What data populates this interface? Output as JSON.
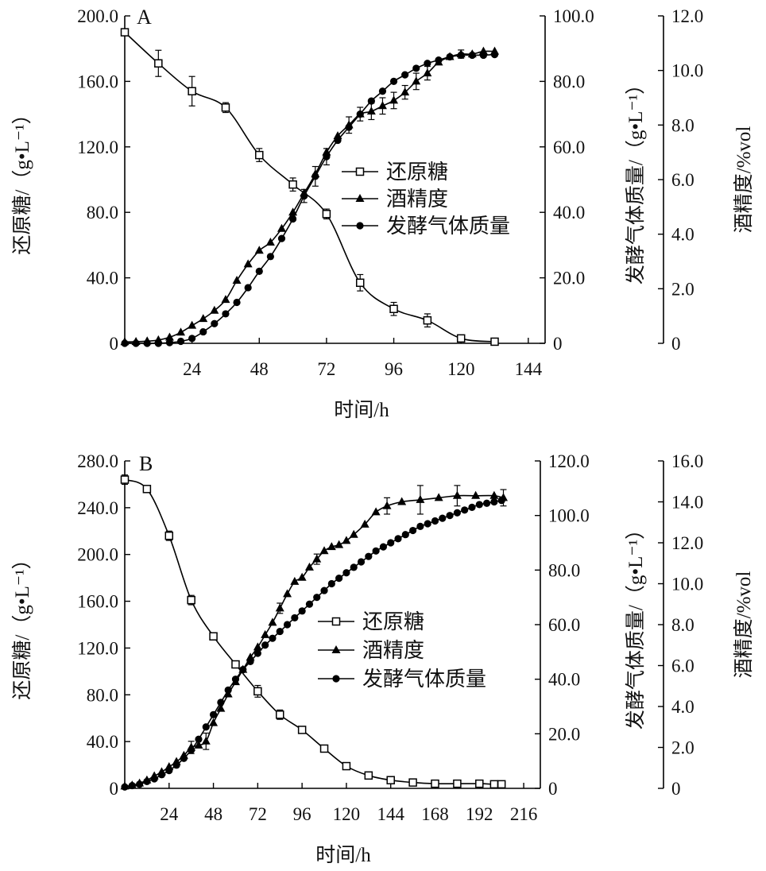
{
  "chart_data": [
    {
      "type": "line",
      "panel_label": "A",
      "xlabel": "时间/h",
      "x_ticks": [
        "24",
        "48",
        "72",
        "96",
        "120",
        "144"
      ],
      "xlim": [
        0,
        150
      ],
      "axes": {
        "left": {
          "label": "还原糖/（g•L⁻¹）",
          "range": [
            0,
            200
          ],
          "ticks": [
            "0",
            "40.0",
            "80.0",
            "120.0",
            "160.0",
            "200.0"
          ]
        },
        "right1": {
          "label": "发酵气体质量/（g•L⁻¹）",
          "range": [
            0,
            100
          ],
          "ticks": [
            "0",
            "20.0",
            "40.0",
            "60.0",
            "80.0",
            "100.0"
          ]
        },
        "right2": {
          "label": "酒精度/%vol",
          "range": [
            0,
            12
          ],
          "ticks": [
            "0",
            "2.0",
            "4.0",
            "6.0",
            "8.0",
            "10.0",
            "12.0"
          ]
        }
      },
      "legend": {
        "position": "center-right",
        "entries": [
          "还原糖",
          "酒精度",
          "发酵气体质量"
        ]
      },
      "series": [
        {
          "name": "还原糖",
          "marker": "square-open",
          "axis": "left",
          "x": [
            0,
            12,
            24,
            36,
            48,
            60,
            72,
            84,
            96,
            108,
            120,
            132
          ],
          "y": [
            190,
            171,
            154,
            144,
            115,
            97,
            79,
            37,
            21,
            14,
            3,
            1
          ],
          "err": [
            2,
            8,
            9,
            3,
            4,
            4,
            3,
            5,
            4,
            4,
            1,
            0.5
          ]
        },
        {
          "name": "酒精度",
          "marker": "triangle-filled",
          "axis": "right2",
          "x": [
            0,
            4,
            8,
            12,
            16,
            20,
            24,
            28,
            32,
            36,
            40,
            44,
            48,
            52,
            56,
            60,
            64,
            68,
            72,
            76,
            80,
            84,
            88,
            92,
            96,
            100,
            104,
            108,
            112,
            116,
            120,
            124,
            128,
            132
          ],
          "y": [
            0.05,
            0.06,
            0.08,
            0.12,
            0.22,
            0.4,
            0.65,
            0.9,
            1.2,
            1.6,
            2.3,
            2.9,
            3.4,
            3.7,
            4.2,
            4.8,
            5.5,
            6.2,
            7.0,
            7.6,
            8.0,
            8.4,
            8.5,
            8.7,
            8.9,
            9.2,
            9.6,
            9.9,
            10.3,
            10.5,
            10.6,
            10.6,
            10.7,
            10.7
          ],
          "err": [
            0,
            0,
            0,
            0,
            0,
            0,
            0,
            0,
            0,
            0,
            0,
            0,
            0,
            0,
            0,
            0,
            0,
            0,
            0,
            0,
            0.3,
            0.25,
            0.3,
            0.3,
            0.3,
            0.25,
            0.3,
            0.25,
            0,
            0,
            0.15,
            0,
            0,
            0
          ]
        },
        {
          "name": "发酵气体质量",
          "marker": "circle-filled",
          "axis": "right1",
          "x": [
            0,
            4,
            8,
            12,
            16,
            20,
            24,
            28,
            32,
            36,
            40,
            44,
            48,
            52,
            56,
            60,
            64,
            68,
            72,
            76,
            80,
            84,
            88,
            92,
            96,
            100,
            104,
            108,
            112,
            116,
            120,
            124,
            128,
            132
          ],
          "y": [
            0,
            0,
            0,
            0,
            0.2,
            0.6,
            1.5,
            3.5,
            6,
            9,
            12.5,
            17,
            22,
            26.5,
            32,
            38,
            45,
            51,
            57,
            62,
            66,
            70,
            74,
            77,
            80,
            82,
            84,
            85.5,
            86.5,
            87.5,
            88,
            88,
            88,
            88.2
          ],
          "err": [
            0,
            0,
            0,
            0,
            0,
            0,
            0,
            0,
            0,
            0,
            0,
            0,
            0,
            0,
            0,
            0,
            2,
            3,
            2.5,
            0,
            0,
            0,
            0,
            0,
            0,
            0,
            0,
            0,
            0,
            0,
            0,
            0,
            0,
            0
          ]
        }
      ]
    },
    {
      "type": "line",
      "panel_label": "B",
      "xlabel": "时间/h",
      "x_ticks": [
        "24",
        "48",
        "72",
        "96",
        "120",
        "144",
        "168",
        "192",
        "216"
      ],
      "xlim": [
        0,
        225
      ],
      "axes": {
        "left": {
          "label": "还原糖/（g•L⁻¹）",
          "range": [
            0,
            280
          ],
          "ticks": [
            "0",
            "40.0",
            "80.0",
            "120.0",
            "160.0",
            "200.0",
            "240.0",
            "280.0"
          ]
        },
        "right1": {
          "label": "发酵气体质量/（g•L⁻¹）",
          "range": [
            0,
            120
          ],
          "ticks": [
            "0",
            "20.0",
            "40.0",
            "60.0",
            "80.0",
            "100.0",
            "120.0"
          ]
        },
        "right2": {
          "label": "酒精度/%vol",
          "range": [
            0,
            16
          ],
          "ticks": [
            "0",
            "2.0",
            "4.0",
            "6.0",
            "8.0",
            "10.0",
            "12.0",
            "14.0",
            "16.0"
          ]
        }
      },
      "legend": {
        "position": "center-right",
        "entries": [
          "还原糖",
          "酒精度",
          "发酵气体质量"
        ]
      },
      "series": [
        {
          "name": "还原糖",
          "marker": "square-open",
          "axis": "left",
          "x": [
            0,
            12,
            24,
            36,
            48,
            60,
            72,
            84,
            96,
            108,
            120,
            132,
            144,
            156,
            168,
            180,
            192,
            200,
            204
          ],
          "y": [
            264,
            256,
            216,
            161,
            130,
            106,
            83,
            63,
            50,
            34,
            19,
            11,
            7,
            5,
            4,
            4,
            4,
            3.5,
            3.5
          ],
          "err": [
            4,
            2,
            4,
            4,
            3,
            3,
            5,
            4,
            2,
            2,
            1.5,
            1.5,
            1,
            1,
            0.5,
            0.5,
            0.5,
            0.5,
            0.5
          ]
        },
        {
          "name": "酒精度",
          "marker": "triangle-filled",
          "axis": "right2",
          "x": [
            0,
            4,
            8,
            12,
            16,
            20,
            24,
            28,
            32,
            36,
            40,
            44,
            48,
            52,
            56,
            60,
            64,
            68,
            72,
            76,
            80,
            84,
            88,
            92,
            96,
            100,
            104,
            108,
            112,
            116,
            120,
            124,
            130,
            136,
            142,
            150,
            160,
            170,
            180,
            190,
            200,
            205
          ],
          "y": [
            0.1,
            0.15,
            0.25,
            0.4,
            0.6,
            0.8,
            1.05,
            1.3,
            1.6,
            2.0,
            2.1,
            2.3,
            3.2,
            3.9,
            4.6,
            5.2,
            5.8,
            6.4,
            6.9,
            7.5,
            8.1,
            8.8,
            9.5,
            10.1,
            10.3,
            10.8,
            11.2,
            11.6,
            11.8,
            11.9,
            12.1,
            12.4,
            12.9,
            13.5,
            13.8,
            14.0,
            14.1,
            14.2,
            14.3,
            14.3,
            14.3,
            14.2
          ],
          "err": [
            0,
            0,
            0,
            0,
            0,
            0,
            0,
            0,
            0,
            0.3,
            0,
            0.4,
            0,
            0,
            0,
            0,
            0,
            0,
            0,
            0,
            0,
            0.25,
            0,
            0,
            0,
            0,
            0.25,
            0,
            0,
            0,
            0,
            0,
            0,
            0,
            0.4,
            0,
            0.7,
            0,
            0.5,
            0,
            0,
            0.4
          ]
        },
        {
          "name": "发酵气体质量",
          "marker": "circle-filled",
          "axis": "right1",
          "x": [
            0,
            4,
            8,
            12,
            16,
            20,
            24,
            28,
            32,
            36,
            40,
            44,
            48,
            52,
            56,
            60,
            64,
            68,
            72,
            76,
            80,
            84,
            88,
            92,
            96,
            100,
            104,
            108,
            112,
            116,
            120,
            124,
            128,
            132,
            136,
            140,
            144,
            148,
            152,
            156,
            160,
            164,
            168,
            172,
            176,
            180,
            184,
            188,
            192,
            196,
            200,
            204
          ],
          "y": [
            0.5,
            1,
            1.5,
            2.5,
            3.5,
            5,
            6.5,
            8.5,
            11,
            14,
            18,
            22.5,
            27,
            31.5,
            36,
            40,
            43.5,
            46.5,
            49.5,
            52.5,
            55,
            57.5,
            60,
            62.5,
            65,
            67.5,
            70,
            72.5,
            75,
            77,
            79,
            81,
            83,
            85,
            87,
            88.5,
            90,
            91.5,
            93,
            94.5,
            96,
            97,
            98,
            99,
            100,
            101,
            102,
            103,
            104,
            104.5,
            105,
            105.5
          ],
          "err": []
        }
      ]
    }
  ]
}
